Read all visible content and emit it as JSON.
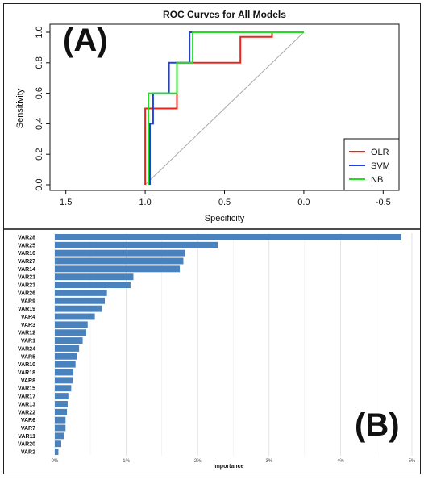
{
  "chart_data": [
    {
      "type": "line",
      "panel_label": "(A)",
      "title": "ROC Curves for All Models",
      "xlabel": "Specificity",
      "ylabel": "Sensitivity",
      "xlim": [
        1.6,
        -0.6
      ],
      "ylim": [
        0.0,
        1.0
      ],
      "x_reversed": true,
      "x_ticks": [
        1.5,
        1.0,
        0.5,
        0.0,
        -0.5
      ],
      "x_tick_labels": [
        "1.5",
        "1.0",
        "0.5",
        "0.0",
        "-0.5"
      ],
      "y_ticks": [
        0.0,
        0.2,
        0.4,
        0.6,
        0.8,
        1.0
      ],
      "y_tick_labels": [
        "0.0",
        "0.2",
        "0.4",
        "0.6",
        "0.8",
        "1.0"
      ],
      "reference_line": {
        "x": [
          1.0,
          0.0
        ],
        "y": [
          0.0,
          1.0
        ],
        "color": "#aaaaaa"
      },
      "legend_position": "bottom-right",
      "series": [
        {
          "name": "OLR",
          "color": "#e8261c",
          "x": [
            1.0,
            1.0,
            0.8,
            0.8,
            0.4,
            0.4,
            0.2,
            0.2,
            0.0
          ],
          "y": [
            0.0,
            0.5,
            0.5,
            0.8,
            0.8,
            0.97,
            0.97,
            1.0,
            1.0
          ]
        },
        {
          "name": "SVM",
          "color": "#2040e0",
          "x": [
            0.97,
            0.97,
            0.95,
            0.95,
            0.85,
            0.85,
            0.72,
            0.72,
            0.0
          ],
          "y": [
            0.0,
            0.4,
            0.4,
            0.6,
            0.6,
            0.8,
            0.8,
            1.0,
            1.0
          ]
        },
        {
          "name": "NB",
          "color": "#22dd22",
          "x": [
            0.98,
            0.98,
            0.95,
            0.95,
            0.8,
            0.8,
            0.7,
            0.7,
            0.0
          ],
          "y": [
            0.0,
            0.6,
            0.6,
            0.6,
            0.6,
            0.8,
            0.8,
            1.0,
            1.0
          ]
        }
      ]
    },
    {
      "type": "bar",
      "orientation": "horizontal",
      "panel_label": "(B)",
      "xlabel": "Importance",
      "xlim": [
        0,
        5
      ],
      "x_ticks": [
        0,
        1,
        2,
        3,
        4,
        5
      ],
      "x_tick_labels": [
        "0%",
        "1%",
        "2%",
        "3%",
        "4%",
        "5%"
      ],
      "bar_color": "#4a82bd",
      "grid": true,
      "categories": [
        "VAR28",
        "VAR25",
        "VAR16",
        "VAR27",
        "VAR14",
        "VAR21",
        "VAR23",
        "VAR26",
        "VAR9",
        "VAR19",
        "VAR4",
        "VAR3",
        "VAR12",
        "VAR1",
        "VAR24",
        "VAR5",
        "VAR10",
        "VAR18",
        "VAR8",
        "VAR15",
        "VAR17",
        "VAR13",
        "VAR22",
        "VAR6",
        "VAR7",
        "VAR11",
        "VAR20",
        "VAR2"
      ],
      "values": [
        4.85,
        2.28,
        1.82,
        1.8,
        1.75,
        1.1,
        1.06,
        0.73,
        0.7,
        0.66,
        0.56,
        0.46,
        0.44,
        0.39,
        0.34,
        0.31,
        0.29,
        0.26,
        0.25,
        0.23,
        0.19,
        0.18,
        0.17,
        0.15,
        0.15,
        0.13,
        0.09,
        0.05
      ]
    }
  ]
}
